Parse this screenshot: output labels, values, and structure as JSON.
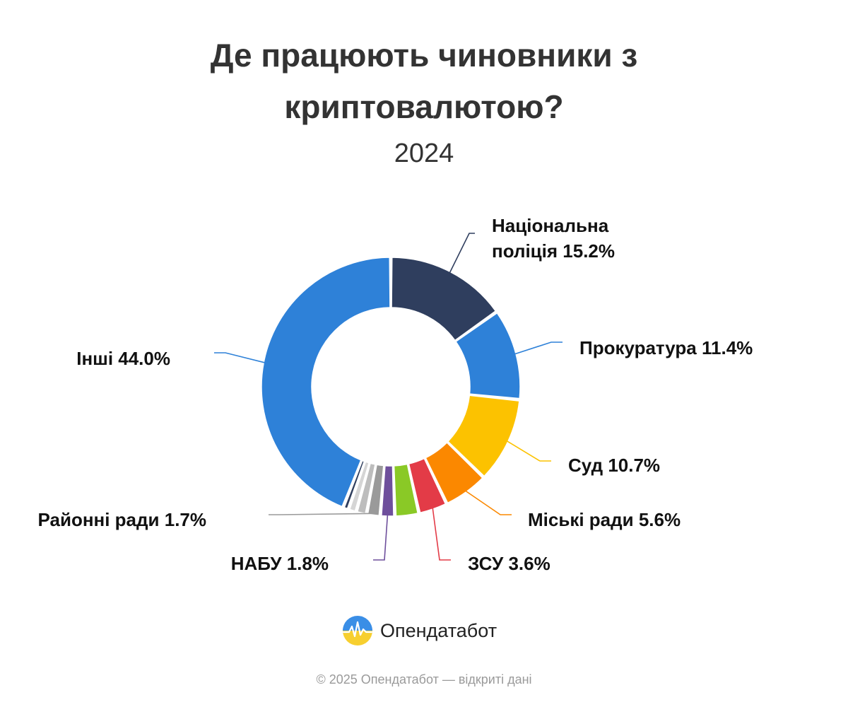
{
  "title_lines": [
    "Де працюють чиновники з",
    "криптовалютою?"
  ],
  "subtitle": "2024",
  "chart_data": {
    "type": "pie",
    "variant": "donut",
    "slices": [
      {
        "label": "Національна поліція",
        "value": 15.2,
        "color": "#2f3e5e",
        "labeled": true
      },
      {
        "label": "Прокуратура",
        "value": 11.4,
        "color": "#2e81d8",
        "labeled": true
      },
      {
        "label": "Суд",
        "value": 10.7,
        "color": "#fcc200",
        "labeled": true
      },
      {
        "label": "Міські ради",
        "value": 5.6,
        "color": "#fb8800",
        "labeled": true
      },
      {
        "label": "ЗСУ",
        "value": 3.6,
        "color": "#e33b47",
        "labeled": true
      },
      {
        "label": "",
        "value": 3.0,
        "color": "#8ac926",
        "labeled": false
      },
      {
        "label": "НАБУ",
        "value": 1.8,
        "color": "#6e4f9c",
        "labeled": true
      },
      {
        "label": "Районні ради",
        "value": 1.7,
        "color": "#9a9a9a",
        "labeled": true
      },
      {
        "label": "",
        "value": 1.3,
        "color": "#bdbdbd",
        "labeled": false
      },
      {
        "label": "",
        "value": 1.0,
        "color": "#d5d5d5",
        "labeled": false
      },
      {
        "label": "",
        "value": 0.7,
        "color": "#2f3e5e",
        "labeled": false
      },
      {
        "label": "Інші",
        "value": 44.0,
        "color": "#2e81d8",
        "labeled": true
      }
    ],
    "labels": [
      {
        "lines": [
          "Національна",
          "поліція 15.2%"
        ]
      },
      {
        "lines": [
          "Прокуратура 11.4%"
        ]
      },
      {
        "lines": [
          "Суд 10.7%"
        ]
      },
      {
        "lines": [
          "Міські ради 5.6%"
        ]
      },
      {
        "lines": [
          "ЗСУ 3.6%"
        ]
      },
      {
        "lines": [
          "НАБУ 1.8%"
        ]
      },
      {
        "lines": [
          "Районні ради 1.7%"
        ]
      },
      {
        "lines": [
          "Інші 44.0%"
        ]
      }
    ]
  },
  "brand": {
    "name": "Опендатабот"
  },
  "footer": "© 2025 Опендатабот — відкриті дані"
}
